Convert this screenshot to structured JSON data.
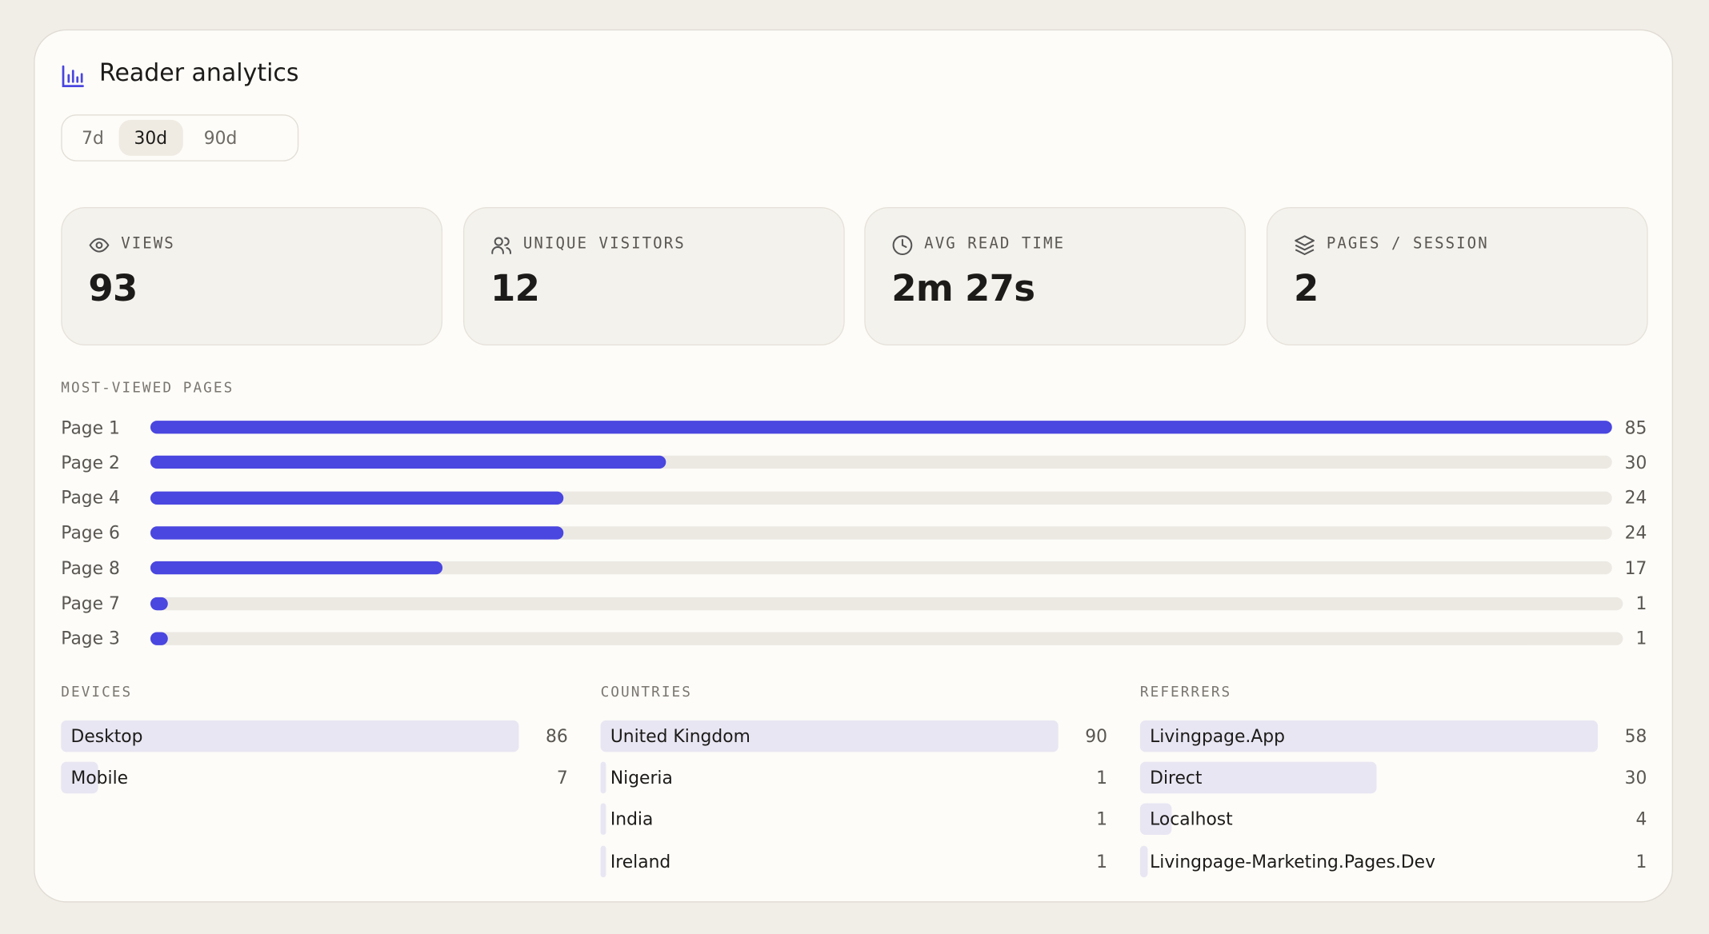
{
  "header": {
    "title": "Reader analytics"
  },
  "range_tabs": {
    "options": [
      "7d",
      "30d",
      "90d"
    ],
    "selected": 1
  },
  "stats": [
    {
      "label": "VIEWS",
      "value": 93
    },
    {
      "label": "UNIQUE VISITORS",
      "value": 12
    },
    {
      "label": "AVG READ TIME",
      "value": "2m 27s"
    },
    {
      "label": "PAGES / SESSION",
      "value": 2
    }
  ],
  "most_viewed_pages": {
    "title": "MOST-VIEWED PAGES",
    "rows": [
      {
        "label": "Page 1",
        "value": 85
      },
      {
        "label": "Page 2",
        "value": 30
      },
      {
        "label": "Page 4",
        "value": 24
      },
      {
        "label": "Page 6",
        "value": 24
      },
      {
        "label": "Page 8",
        "value": 17
      },
      {
        "label": "Page 7",
        "value": 1
      },
      {
        "label": "Page 3",
        "value": 1
      }
    ]
  },
  "devices": {
    "title": "DEVICES",
    "rows": [
      {
        "label": "Desktop",
        "value": 86
      },
      {
        "label": "Mobile",
        "value": 7
      }
    ]
  },
  "countries": {
    "title": "COUNTRIES",
    "rows": [
      {
        "label": "United Kingdom",
        "value": 90
      },
      {
        "label": "Nigeria",
        "value": 1
      },
      {
        "label": "India",
        "value": 1
      },
      {
        "label": "Ireland",
        "value": 1
      }
    ]
  },
  "referrers": {
    "title": "REFERRERS",
    "rows": [
      {
        "label": "Livingpage.App",
        "value": 58
      },
      {
        "label": "Direct",
        "value": 30
      },
      {
        "label": "Localhost",
        "value": 4
      },
      {
        "label": "Livingpage-Marketing.Pages.Dev",
        "value": 1
      }
    ]
  }
}
